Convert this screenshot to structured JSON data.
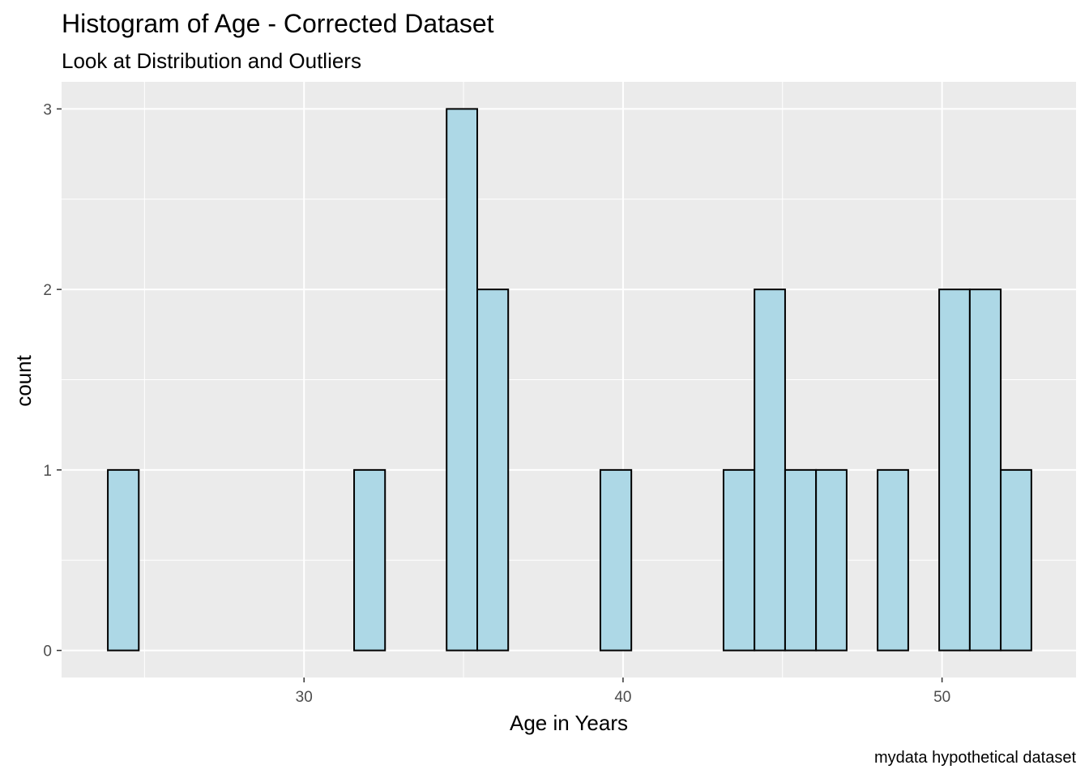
{
  "chart_data": {
    "type": "bar",
    "title": "Histogram of Age - Corrected Dataset",
    "subtitle": "Look at Distribution and Outliers",
    "xlabel": "Age in Years",
    "ylabel": "count",
    "caption": "mydata hypothetical dataset",
    "xlim": [
      22.4,
      54.2
    ],
    "ylim": [
      -0.15,
      3.15
    ],
    "x_ticks": [
      30,
      40,
      50
    ],
    "y_ticks": [
      0,
      1,
      2,
      3
    ],
    "bin_width": 0.965,
    "bins": [
      {
        "x_min": 23.85,
        "x_max": 24.82,
        "count": 1
      },
      {
        "x_min": 24.82,
        "x_max": 25.78,
        "count": 0
      },
      {
        "x_min": 25.78,
        "x_max": 26.75,
        "count": 0
      },
      {
        "x_min": 26.75,
        "x_max": 27.71,
        "count": 0
      },
      {
        "x_min": 27.71,
        "x_max": 28.68,
        "count": 0
      },
      {
        "x_min": 28.68,
        "x_max": 29.64,
        "count": 0
      },
      {
        "x_min": 29.64,
        "x_max": 30.61,
        "count": 0
      },
      {
        "x_min": 30.61,
        "x_max": 31.57,
        "count": 0
      },
      {
        "x_min": 31.57,
        "x_max": 32.54,
        "count": 1
      },
      {
        "x_min": 32.54,
        "x_max": 33.5,
        "count": 0
      },
      {
        "x_min": 33.5,
        "x_max": 34.47,
        "count": 0
      },
      {
        "x_min": 34.47,
        "x_max": 35.43,
        "count": 3
      },
      {
        "x_min": 35.43,
        "x_max": 36.4,
        "count": 2
      },
      {
        "x_min": 36.4,
        "x_max": 37.36,
        "count": 0
      },
      {
        "x_min": 37.36,
        "x_max": 38.33,
        "count": 0
      },
      {
        "x_min": 38.33,
        "x_max": 39.29,
        "count": 0
      },
      {
        "x_min": 39.29,
        "x_max": 40.26,
        "count": 1
      },
      {
        "x_min": 40.26,
        "x_max": 41.22,
        "count": 0
      },
      {
        "x_min": 41.22,
        "x_max": 42.19,
        "count": 0
      },
      {
        "x_min": 42.19,
        "x_max": 43.15,
        "count": 0
      },
      {
        "x_min": 43.15,
        "x_max": 44.12,
        "count": 1
      },
      {
        "x_min": 44.12,
        "x_max": 45.08,
        "count": 2
      },
      {
        "x_min": 45.08,
        "x_max": 46.05,
        "count": 1
      },
      {
        "x_min": 46.05,
        "x_max": 47.01,
        "count": 1
      },
      {
        "x_min": 47.01,
        "x_max": 47.98,
        "count": 0
      },
      {
        "x_min": 47.98,
        "x_max": 48.94,
        "count": 1
      },
      {
        "x_min": 48.94,
        "x_max": 49.91,
        "count": 0
      },
      {
        "x_min": 49.91,
        "x_max": 50.87,
        "count": 2
      },
      {
        "x_min": 50.87,
        "x_max": 51.84,
        "count": 2
      },
      {
        "x_min": 51.84,
        "x_max": 52.8,
        "count": 1
      }
    ],
    "grid": true,
    "colors": {
      "bar_fill": "#add8e6",
      "bar_outline": "#000000",
      "panel_background": "#ebebeb",
      "grid": "#ffffff"
    }
  }
}
